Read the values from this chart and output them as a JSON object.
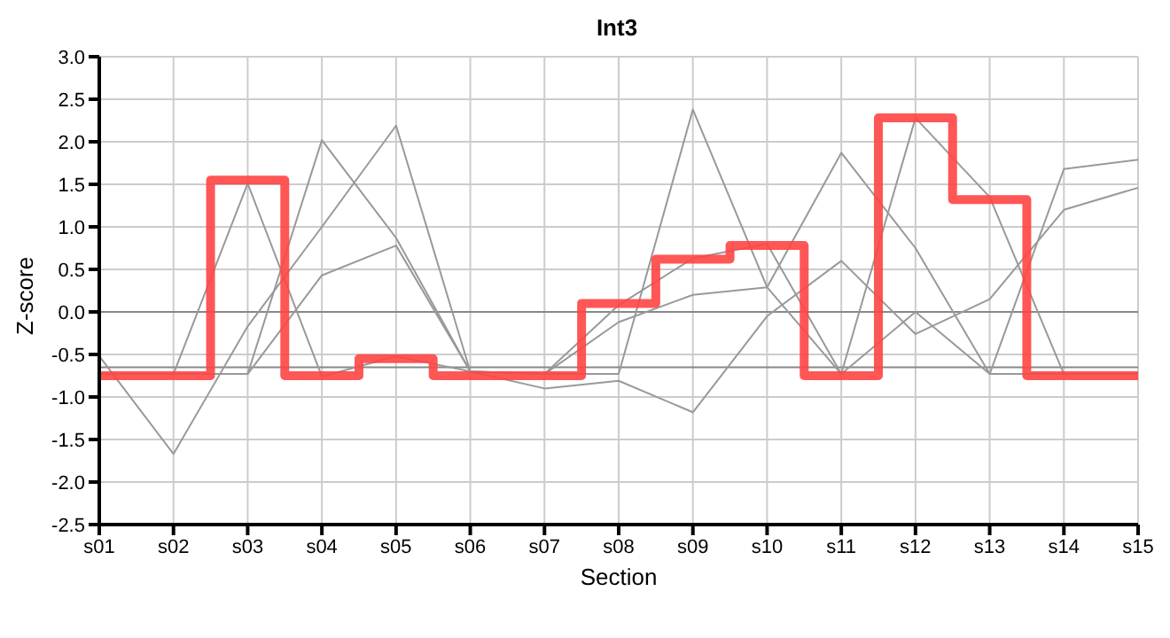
{
  "chart_data": {
    "type": "line",
    "title": "Int3",
    "xlabel": "Section",
    "ylabel": "Z-score",
    "categories": [
      "s01",
      "s02",
      "s03",
      "s04",
      "s05",
      "s06",
      "s07",
      "s08",
      "s09",
      "s10",
      "s11",
      "s12",
      "s13",
      "s14",
      "s15"
    ],
    "series": [
      {
        "color": "#999999",
        "values": [
          -0.73,
          -0.73,
          1.51,
          -0.76,
          -0.52,
          -0.7,
          -0.73,
          -0.73,
          2.38,
          0.29,
          1.87,
          0.75,
          -0.73,
          -0.73,
          -0.73
        ]
      },
      {
        "color": "#999999",
        "values": [
          -0.52,
          -1.67,
          -0.17,
          1.0,
          2.19,
          -0.7,
          -0.73,
          0.08,
          0.63,
          0.8,
          -0.73,
          2.28,
          1.35,
          -0.73,
          -0.73
        ]
      },
      {
        "color": "#999999",
        "values": [
          -0.73,
          -0.73,
          -0.73,
          2.02,
          0.87,
          -0.7,
          -0.9,
          -0.81,
          -1.18,
          -0.05,
          0.6,
          -0.26,
          0.15,
          1.2,
          1.46
        ]
      },
      {
        "color": "#999999",
        "values": [
          -0.73,
          -0.73,
          -0.73,
          0.43,
          0.78,
          -0.7,
          -0.73,
          -0.12,
          0.2,
          0.29,
          -0.73,
          0,
          -0.73,
          1.68,
          1.79
        ]
      },
      {
        "type": "step",
        "color": "#ff4444",
        "values": [
          -0.75,
          -0.75,
          1.55,
          -0.75,
          -0.55,
          -0.75,
          -0.75,
          0.1,
          0.62,
          0.78,
          -0.75,
          2.28,
          1.32,
          -0.75,
          -0.75
        ]
      }
    ],
    "ylim": [
      -2.5,
      3
    ],
    "yticks": [
      -2.5,
      {
        "value": -2,
        "label": "-2.0"
      },
      -1.5,
      {
        "value": -1,
        "label": "-1.0"
      },
      -0.5,
      {
        "value": 0,
        "label": "0.0"
      },
      0.5,
      {
        "value": 1,
        "label": "1.0"
      },
      1.5,
      {
        "value": 2,
        "label": "2.0"
      },
      2.5,
      {
        "value": 3,
        "label": "3.0"
      }
    ],
    "ref_lines": [
      {
        "axis": "y",
        "value": 0,
        "color": "#888888"
      },
      {
        "axis": "y",
        "value": -0.65,
        "color": "#888888"
      }
    ],
    "grid": true,
    "legend": false,
    "marker": "none",
    "line_style": "solid"
  }
}
